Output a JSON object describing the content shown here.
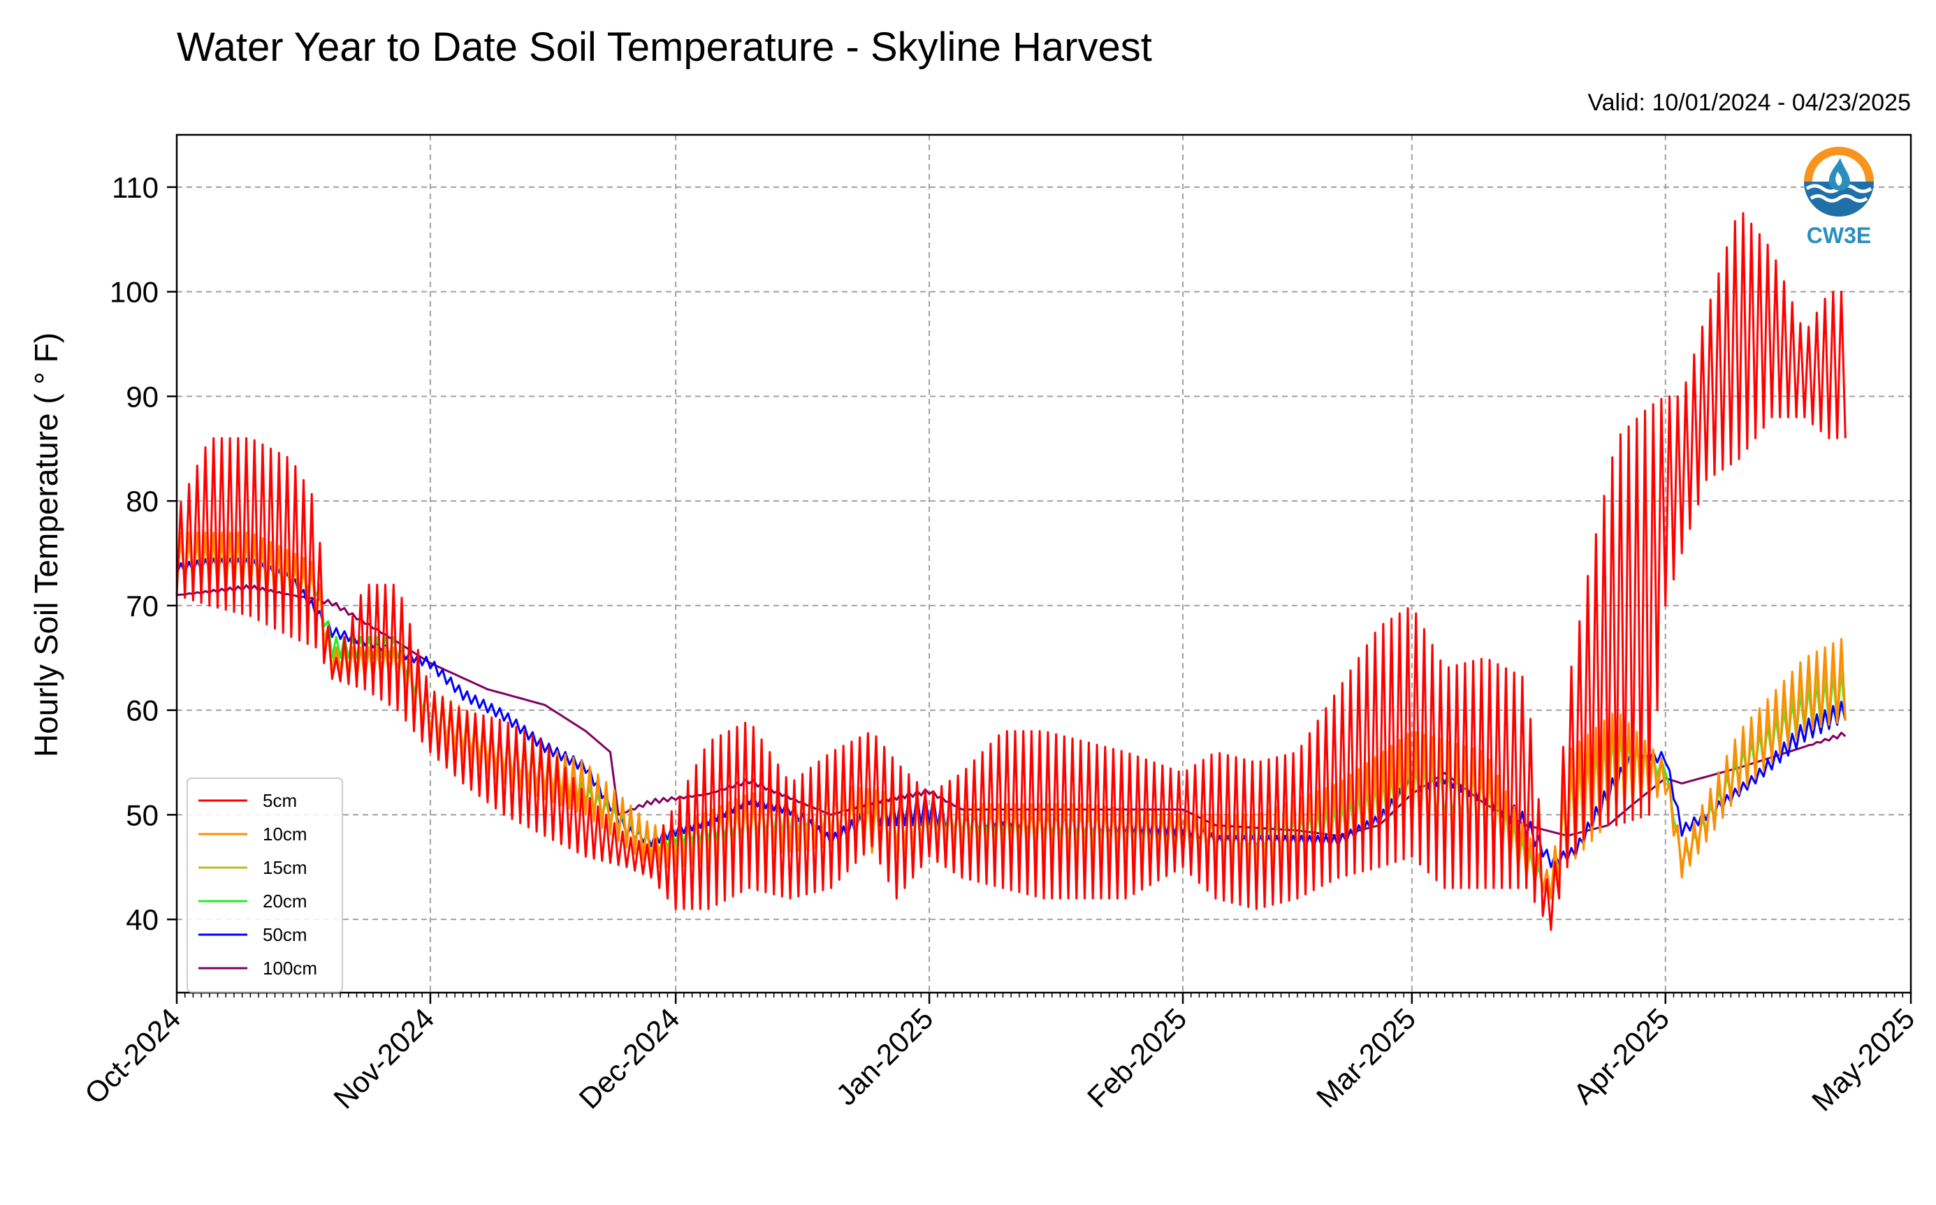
{
  "chart_data": {
    "type": "line",
    "title": "Water Year to Date Soil Temperature - Skyline Harvest",
    "subtitle": "Valid: 10/01/2024 - 04/23/2025",
    "ylabel": "Hourly Soil Temperature ( ° F)",
    "xlabel": "",
    "ylim": [
      33,
      115
    ],
    "xlim": [
      "2024-10-01",
      "2025-05-01"
    ],
    "yticks": [
      40,
      50,
      60,
      70,
      80,
      90,
      100,
      110
    ],
    "xticks": [
      {
        "date": "2024-10-01",
        "label": "Oct-2024"
      },
      {
        "date": "2024-11-01",
        "label": "Nov-2024"
      },
      {
        "date": "2024-12-01",
        "label": "Dec-2024"
      },
      {
        "date": "2025-01-01",
        "label": "Jan-2025"
      },
      {
        "date": "2025-02-01",
        "label": "Feb-2025"
      },
      {
        "date": "2025-03-01",
        "label": "Mar-2025"
      },
      {
        "date": "2025-04-01",
        "label": "Apr-2025"
      },
      {
        "date": "2025-05-01",
        "label": "May-2025"
      }
    ],
    "grid": true,
    "legend_position": "lower-left",
    "logo": "CW3E",
    "series": [
      {
        "name": "5cm",
        "color": "#ff0000",
        "dates": [
          "2024-10-01",
          "2024-10-05",
          "2024-10-10",
          "2024-10-15",
          "2024-10-18",
          "2024-10-20",
          "2024-10-24",
          "2024-10-28",
          "2024-11-01",
          "2024-11-05",
          "2024-11-10",
          "2024-11-15",
          "2024-11-20",
          "2024-11-25",
          "2024-11-28",
          "2024-12-01",
          "2024-12-05",
          "2024-12-10",
          "2024-12-15",
          "2024-12-20",
          "2024-12-25",
          "2024-12-28",
          "2025-01-01",
          "2025-01-05",
          "2025-01-10",
          "2025-01-15",
          "2025-01-20",
          "2025-01-25",
          "2025-02-01",
          "2025-02-05",
          "2025-02-10",
          "2025-02-15",
          "2025-02-20",
          "2025-02-25",
          "2025-03-01",
          "2025-03-05",
          "2025-03-10",
          "2025-03-15",
          "2025-03-18",
          "2025-03-20",
          "2025-03-23",
          "2025-03-26",
          "2025-03-30",
          "2025-04-01",
          "2025-04-03",
          "2025-04-06",
          "2025-04-10",
          "2025-04-14",
          "2025-04-18",
          "2025-04-21",
          "2025-04-23"
        ],
        "min": [
          71,
          70,
          69,
          67,
          66,
          63,
          62,
          60,
          56,
          53,
          50,
          48,
          46,
          45,
          44,
          41,
          41,
          43,
          42,
          43,
          47,
          42,
          46,
          44,
          43,
          42,
          42,
          42,
          45,
          42,
          41,
          42,
          44,
          45,
          46,
          43,
          43,
          43,
          39,
          45,
          49,
          49,
          50,
          70,
          75,
          82,
          84,
          88,
          88,
          86,
          86
        ],
        "max": [
          79,
          86,
          86,
          84,
          80,
          64,
          72,
          72,
          62,
          60,
          59,
          57,
          52,
          48,
          47,
          51,
          57,
          59,
          53,
          56,
          58,
          55,
          52,
          54,
          58,
          58,
          57,
          56,
          54,
          56,
          55,
          56,
          62,
          68,
          70,
          64,
          65,
          63,
          40,
          62,
          75,
          86,
          89,
          90,
          90,
          98,
          108,
          104,
          96,
          100,
          100
        ]
      },
      {
        "name": "10cm",
        "color": "#ff8c00",
        "dates": [
          "2024-10-01",
          "2024-10-10",
          "2024-10-18",
          "2024-10-20",
          "2024-10-28",
          "2024-11-01",
          "2024-11-10",
          "2024-11-20",
          "2024-11-28",
          "2024-12-01",
          "2024-12-10",
          "2024-12-20",
          "2024-12-28",
          "2025-01-01",
          "2025-01-10",
          "2025-01-20",
          "2025-02-01",
          "2025-02-10",
          "2025-02-20",
          "2025-03-01",
          "2025-03-10",
          "2025-03-18",
          "2025-03-20",
          "2025-03-26",
          "2025-04-01",
          "2025-04-03",
          "2025-04-10",
          "2025-04-18",
          "2025-04-23"
        ],
        "min": [
          72,
          71,
          69,
          63,
          63,
          57,
          53,
          50,
          45,
          45,
          46,
          47,
          46,
          47,
          46,
          46,
          46,
          45,
          46,
          48,
          47,
          42,
          45,
          50,
          52,
          44,
          52,
          58,
          59
        ],
        "max": [
          77,
          77,
          74,
          66,
          66,
          62,
          58,
          55,
          49,
          49,
          52,
          53,
          52,
          51,
          51,
          51,
          50,
          50,
          53,
          58,
          56,
          44,
          56,
          60,
          55,
          47,
          58,
          65,
          67
        ]
      },
      {
        "name": "15cm",
        "color": "#bcbd22",
        "dates": [
          "2024-10-01",
          "2024-10-10",
          "2024-10-18",
          "2024-10-20",
          "2024-10-28",
          "2024-11-01",
          "2024-11-10",
          "2024-11-20",
          "2024-11-28",
          "2024-12-01",
          "2024-12-10",
          "2024-12-20",
          "2024-12-28",
          "2025-01-01",
          "2025-01-10",
          "2025-01-20",
          "2025-02-01",
          "2025-02-10",
          "2025-02-20",
          "2025-03-01",
          "2025-03-10",
          "2025-03-18",
          "2025-03-20",
          "2025-03-26",
          "2025-04-01",
          "2025-04-03",
          "2025-04-10",
          "2025-04-18",
          "2025-04-23"
        ],
        "min": [
          73,
          72,
          70,
          64,
          64,
          58,
          54,
          51,
          46,
          46,
          47,
          48,
          47,
          48,
          47,
          47,
          47,
          46,
          47,
          49,
          48,
          42,
          46,
          51,
          53,
          45,
          53,
          58,
          59
        ],
        "max": [
          76,
          76,
          73,
          66,
          66,
          61,
          57,
          54,
          48,
          49,
          51,
          52,
          51,
          51,
          51,
          51,
          50,
          50,
          52,
          56,
          55,
          44,
          55,
          59,
          55,
          46,
          57,
          63,
          65
        ]
      },
      {
        "name": "20cm",
        "color": "#22ee22",
        "dates": [
          "2024-10-01",
          "2024-10-10",
          "2024-10-18",
          "2024-10-20",
          "2024-10-28",
          "2024-11-01",
          "2024-11-10",
          "2024-11-20",
          "2024-11-28",
          "2024-12-01",
          "2024-12-10",
          "2024-12-20",
          "2024-12-28",
          "2025-01-01",
          "2025-01-10",
          "2025-01-20",
          "2025-02-01",
          "2025-02-10",
          "2025-02-20",
          "2025-03-01",
          "2025-03-10",
          "2025-03-18",
          "2025-03-20",
          "2025-03-26",
          "2025-04-01",
          "2025-04-03",
          "2025-04-10",
          "2025-04-18",
          "2025-04-23"
        ],
        "min": [
          73,
          73,
          71,
          65,
          65,
          58,
          54,
          51,
          46,
          47,
          48,
          48,
          47,
          48,
          48,
          48,
          47,
          46,
          47,
          50,
          49,
          42,
          47,
          52,
          54,
          45,
          53,
          58,
          59
        ],
        "max": [
          76,
          76,
          73,
          67,
          67,
          61,
          57,
          53,
          48,
          49,
          51,
          52,
          51,
          51,
          51,
          50,
          50,
          49,
          51,
          55,
          54,
          43,
          54,
          58,
          55,
          46,
          56,
          62,
          64
        ]
      },
      {
        "name": "50cm",
        "color": "#0000ff",
        "dates": [
          "2024-10-01",
          "2024-10-05",
          "2024-10-10",
          "2024-10-15",
          "2024-10-20",
          "2024-10-25",
          "2024-11-01",
          "2024-11-05",
          "2024-11-10",
          "2024-11-15",
          "2024-11-20",
          "2024-11-25",
          "2024-11-28",
          "2024-12-01",
          "2024-12-05",
          "2024-12-10",
          "2024-12-15",
          "2024-12-20",
          "2024-12-25",
          "2025-01-01",
          "2025-01-05",
          "2025-01-10",
          "2025-01-15",
          "2025-01-20",
          "2025-01-25",
          "2025-02-01",
          "2025-02-05",
          "2025-02-10",
          "2025-02-15",
          "2025-02-20",
          "2025-02-25",
          "2025-03-01",
          "2025-03-05",
          "2025-03-10",
          "2025-03-15",
          "2025-03-18",
          "2025-03-21",
          "2025-03-25",
          "2025-03-28",
          "2025-04-01",
          "2025-04-03",
          "2025-04-07",
          "2025-04-12",
          "2025-04-18",
          "2025-04-23"
        ],
        "min": [
          73,
          73.5,
          73.5,
          72,
          67,
          66,
          64,
          61,
          59,
          56,
          54,
          48,
          47,
          48,
          49,
          51,
          50,
          47,
          49,
          49,
          48,
          49,
          48,
          48,
          48,
          48,
          47,
          47,
          47,
          47,
          49,
          52,
          53,
          51,
          48,
          45,
          46,
          51,
          55,
          55,
          48,
          50,
          53,
          57,
          59
        ],
        "max": [
          74,
          74.5,
          74.5,
          73,
          68,
          66.5,
          65,
          62,
          60,
          57,
          55,
          49,
          48,
          49,
          50,
          52,
          51,
          48,
          51,
          52,
          50,
          50,
          50,
          50,
          50,
          50,
          48,
          48,
          48,
          48,
          50,
          54,
          54,
          53,
          50,
          46,
          47,
          53,
          56,
          56,
          49,
          51,
          54,
          59,
          61
        ]
      },
      {
        "name": "100cm",
        "color": "#800060",
        "dates": [
          "2024-10-01",
          "2024-10-10",
          "2024-10-15",
          "2024-10-20",
          "2024-10-28",
          "2024-11-01",
          "2024-11-08",
          "2024-11-15",
          "2024-11-20",
          "2024-11-23",
          "2024-11-24",
          "2024-11-28",
          "2024-12-05",
          "2024-12-10",
          "2024-12-20",
          "2024-12-25",
          "2025-01-01",
          "2025-01-05",
          "2025-01-15",
          "2025-01-25",
          "2025-02-01",
          "2025-02-05",
          "2025-02-15",
          "2025-02-20",
          "2025-02-25",
          "2025-03-01",
          "2025-03-05",
          "2025-03-10",
          "2025-03-15",
          "2025-03-20",
          "2025-03-25",
          "2025-03-28",
          "2025-04-01",
          "2025-04-03",
          "2025-04-10",
          "2025-04-18",
          "2025-04-23"
        ],
        "min": [
          71,
          71.5,
          71,
          70,
          66.5,
          64.5,
          62,
          60.5,
          58,
          56,
          50,
          51,
          52,
          53,
          50,
          51,
          52,
          50.5,
          50.5,
          50.5,
          50.5,
          49,
          48.5,
          48,
          49,
          52,
          54,
          51,
          49,
          48,
          49,
          51,
          53.5,
          53,
          54.5,
          56.5,
          57.5
        ],
        "max": [
          71,
          72,
          71,
          70.5,
          66.5,
          64.5,
          62,
          60.5,
          58,
          56,
          50,
          51.5,
          52,
          53.5,
          50,
          51.5,
          52.5,
          50.5,
          50.5,
          50.5,
          50.5,
          49,
          48.5,
          48,
          49,
          52,
          54,
          51,
          49,
          48,
          49,
          51,
          53.5,
          53,
          54.5,
          56.5,
          58
        ]
      }
    ]
  }
}
